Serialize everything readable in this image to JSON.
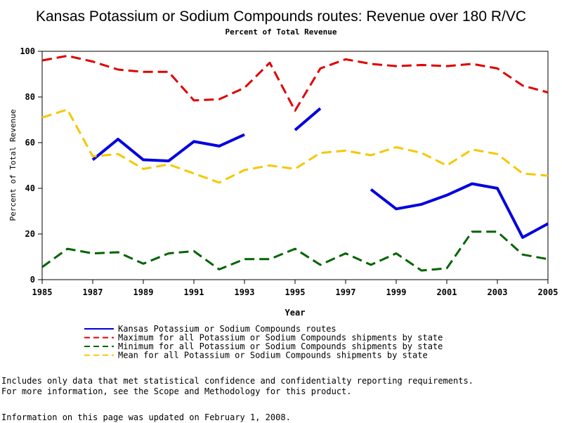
{
  "chart_data": {
    "type": "line",
    "title": "Kansas Potassium or Sodium Compounds routes: Revenue over 180 R/VC",
    "subtitle": "Percent of Total Revenue",
    "xlabel": "Year",
    "ylabel": "Percent of Total Revenue",
    "xlim": [
      1985,
      2005
    ],
    "ylim": [
      0,
      100
    ],
    "x_ticks": [
      "1985",
      "1987",
      "1989",
      "1991",
      "1993",
      "1995",
      "1997",
      "1999",
      "2001",
      "2003",
      "2005"
    ],
    "y_ticks": [
      "0",
      "20",
      "40",
      "60",
      "80",
      "100"
    ],
    "grid": false,
    "legend_position": "bottom",
    "x": [
      1985,
      1986,
      1987,
      1988,
      1989,
      1990,
      1991,
      1992,
      1993,
      1994,
      1995,
      1996,
      1997,
      1998,
      1999,
      2000,
      2001,
      2002,
      2003,
      2004,
      2005
    ],
    "series": [
      {
        "name": "Kansas Potassium or Sodium Compounds routes",
        "color": "#0000e0",
        "style": "solid",
        "values": [
          null,
          null,
          52.5,
          61.5,
          52.5,
          52,
          60.5,
          58.5,
          63.5,
          null,
          65.5,
          75,
          null,
          39.5,
          31,
          33,
          37,
          42,
          40,
          18.5,
          24.5
        ]
      },
      {
        "name": "Maximum for all Potassium or Sodium Compounds shipments by state",
        "color": "#e00000",
        "style": "dashed",
        "values": [
          96,
          98,
          95.5,
          92,
          91,
          91,
          78.5,
          79,
          84,
          95,
          74,
          92.5,
          96.5,
          94.5,
          93.5,
          94,
          93.5,
          94.5,
          92.5,
          85,
          82
        ]
      },
      {
        "name": "Minimum for all Potassium or Sodium Compounds shipments by state",
        "color": "#006400",
        "style": "dashed",
        "values": [
          5.5,
          13.5,
          11.5,
          12,
          7,
          11.5,
          12.5,
          4.5,
          9,
          9,
          13.5,
          6.5,
          11.5,
          6.5,
          11.5,
          4,
          5,
          21,
          21,
          11,
          9
        ]
      },
      {
        "name": "Mean for all Potassium or Sodium Compounds shipments by state",
        "color": "#f5c800",
        "style": "dashed",
        "values": [
          71,
          74.5,
          54,
          55,
          48.5,
          50.5,
          46.5,
          42.5,
          48,
          50,
          48.5,
          55.5,
          56.5,
          54.5,
          58,
          55.5,
          50,
          57,
          55,
          46.5,
          45.5
        ]
      }
    ]
  },
  "footnote": {
    "line1": "Includes only data that met statistical confidence and confidentialty reporting requirements.",
    "line2": "For more information, see the Scope and Methodology for this product.",
    "updated": "Information on this page was updated on February 1, 2008."
  }
}
